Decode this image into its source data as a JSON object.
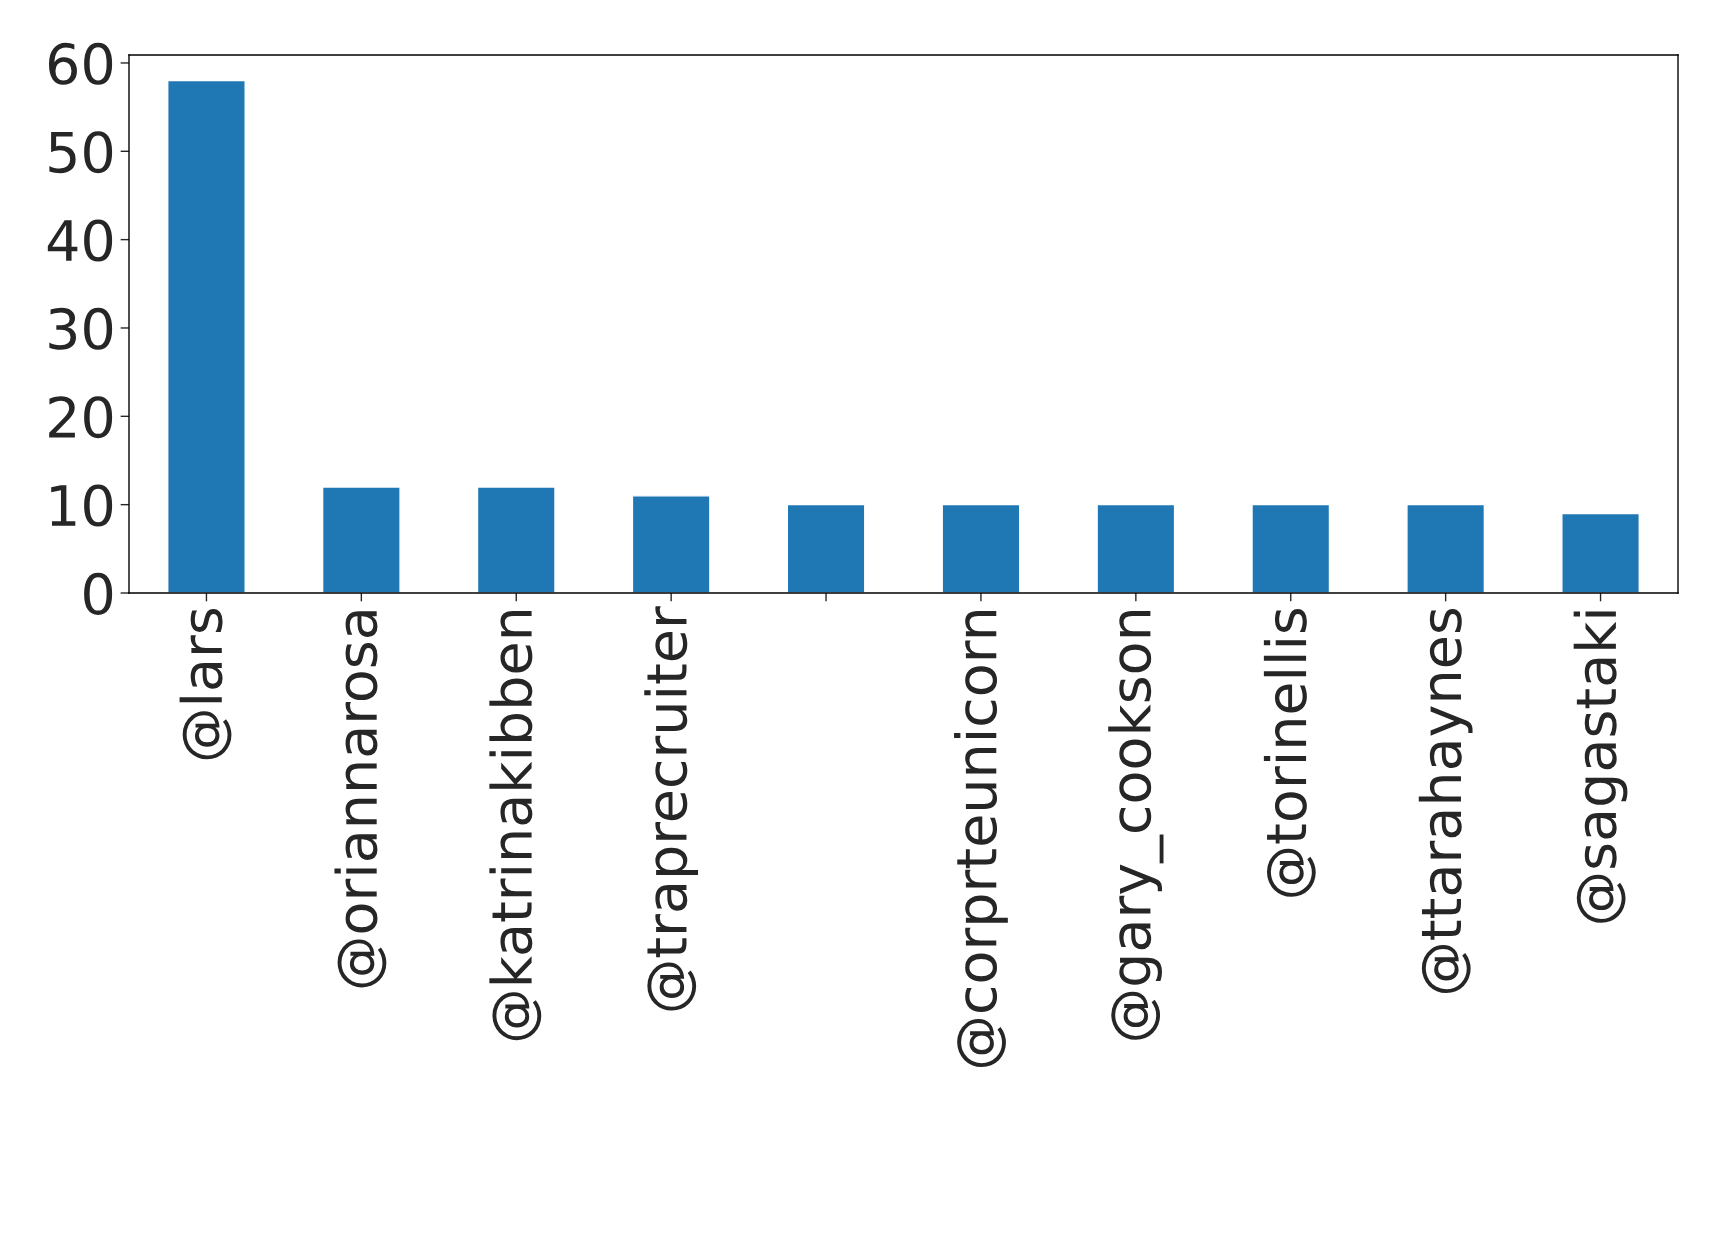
{
  "chart_data": {
    "type": "bar",
    "categories": [
      "@lars",
      "@oriannarosa",
      "@katrinakibben",
      "@traprecruiter",
      null,
      "@corprteunicorn",
      "@gary_cookson",
      "@torinellis",
      "@ttarahaynes",
      "@sagastaki"
    ],
    "values": [
      58,
      12,
      12,
      11,
      10,
      10,
      10,
      10,
      10,
      9
    ],
    "color": "#1f77b4",
    "ylim": [
      0,
      60.9
    ],
    "yticks": [
      0,
      10,
      20,
      30,
      40,
      50,
      60
    ],
    "grid": false,
    "legend": false
  }
}
